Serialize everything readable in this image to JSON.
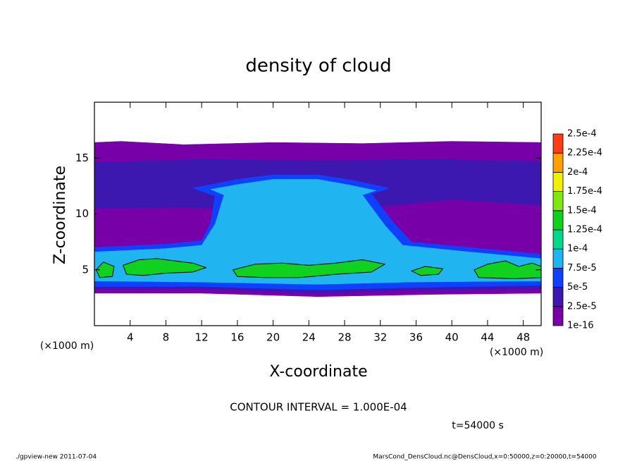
{
  "chart_data": {
    "type": "contour",
    "title": "density of cloud",
    "x_label": "X-coordinate",
    "y_label": "Z-coordinate",
    "x_unit": "(×1000 m)",
    "xlim": [
      0,
      50
    ],
    "ylim": [
      0,
      20
    ],
    "xticks": [
      4,
      8,
      12,
      16,
      20,
      24,
      28,
      32,
      36,
      40,
      44,
      48
    ],
    "yticks": [
      5,
      10,
      15
    ],
    "levels": [
      {
        "value": 1e-16,
        "label": "1e-16"
      },
      {
        "value": 2.5e-05,
        "label": "2.5e-5"
      },
      {
        "value": 5e-05,
        "label": "5e-5"
      },
      {
        "value": 7.5e-05,
        "label": "7.5e-5"
      },
      {
        "value": 0.0001,
        "label": "1e-4"
      },
      {
        "value": 0.000125,
        "label": "1.25e-4"
      },
      {
        "value": 0.00015,
        "label": "1.5e-4"
      },
      {
        "value": 0.000175,
        "label": "1.75e-4"
      },
      {
        "value": 0.0002,
        "label": "2e-4"
      },
      {
        "value": 0.000225,
        "label": "2.25e-4"
      },
      {
        "value": 0.00025,
        "label": "2.5e-4"
      }
    ],
    "level_colors": [
      "#7800a8",
      "#3c18b0",
      "#1040ff",
      "#20b4f0",
      "#00d88c",
      "#10d020",
      "#80e810",
      "#f0f000",
      "#ffa000",
      "#ff3c14",
      "#ff9c9c"
    ],
    "regions": [
      {
        "color": "#7800a8",
        "points": [
          [
            0,
            16.4
          ],
          [
            3,
            16.5
          ],
          [
            10,
            16.2
          ],
          [
            20,
            16.4
          ],
          [
            30,
            16.3
          ],
          [
            40,
            16.5
          ],
          [
            50,
            16.4
          ],
          [
            50,
            2.9
          ],
          [
            38,
            2.8
          ],
          [
            25,
            2.6
          ],
          [
            12,
            2.9
          ],
          [
            0,
            2.9
          ]
        ]
      },
      {
        "color": "#3c18b0",
        "points": [
          [
            0,
            14.6
          ],
          [
            12,
            14.9
          ],
          [
            25,
            14.8
          ],
          [
            38,
            14.9
          ],
          [
            50,
            14.7
          ],
          [
            50,
            10.8
          ],
          [
            40,
            11.3
          ],
          [
            30,
            10.5
          ],
          [
            20,
            10.3
          ],
          [
            10,
            10.6
          ],
          [
            0,
            10.5
          ]
        ]
      },
      {
        "color": "#3c18b0",
        "points": [
          [
            0,
            4.6
          ],
          [
            50,
            4.4
          ],
          [
            50,
            3.3
          ],
          [
            35,
            3.2
          ],
          [
            25,
            2.9
          ],
          [
            12,
            3.3
          ],
          [
            0,
            3.3
          ]
        ]
      },
      {
        "color": "#1040ff",
        "points": [
          [
            0,
            7.0
          ],
          [
            8,
            7.3
          ],
          [
            12,
            7.6
          ],
          [
            13,
            9.2
          ],
          [
            13.5,
            11.6
          ],
          [
            11,
            12.3
          ],
          [
            16,
            13.1
          ],
          [
            20,
            13.5
          ],
          [
            25,
            13.5
          ],
          [
            29,
            13.0
          ],
          [
            33,
            12.3
          ],
          [
            31,
            11.8
          ],
          [
            33.5,
            9.2
          ],
          [
            35.5,
            7.5
          ],
          [
            42,
            7.0
          ],
          [
            50,
            6.4
          ],
          [
            50,
            3.6
          ],
          [
            35,
            3.4
          ],
          [
            25,
            3.2
          ],
          [
            12,
            3.5
          ],
          [
            0,
            3.5
          ]
        ]
      },
      {
        "color": "#20b4f0",
        "points": [
          [
            0,
            6.6
          ],
          [
            8,
            6.9
          ],
          [
            12,
            7.2
          ],
          [
            13.5,
            9.1
          ],
          [
            14.5,
            11.7
          ],
          [
            13,
            12.2
          ],
          [
            16.5,
            12.7
          ],
          [
            20,
            13.1
          ],
          [
            25,
            13.1
          ],
          [
            28.5,
            12.6
          ],
          [
            31.5,
            12.1
          ],
          [
            30,
            11.7
          ],
          [
            32.5,
            9.0
          ],
          [
            34.5,
            7.2
          ],
          [
            42,
            6.6
          ],
          [
            50,
            6.0
          ],
          [
            50,
            4.0
          ],
          [
            35,
            3.9
          ],
          [
            25,
            3.7
          ],
          [
            12,
            3.9
          ],
          [
            0,
            4.0
          ]
        ]
      },
      {
        "color": "#10d020",
        "points": [
          [
            0.2,
            5.0
          ],
          [
            1,
            5.7
          ],
          [
            2.2,
            5.3
          ],
          [
            2,
            4.4
          ],
          [
            0.6,
            4.3
          ]
        ]
      },
      {
        "color": "#10d020",
        "points": [
          [
            3.2,
            5.4
          ],
          [
            5,
            5.9
          ],
          [
            7,
            6.0
          ],
          [
            9,
            5.8
          ],
          [
            11,
            5.6
          ],
          [
            12.5,
            5.2
          ],
          [
            11,
            4.8
          ],
          [
            8,
            4.7
          ],
          [
            5.5,
            4.5
          ],
          [
            3.6,
            4.6
          ]
        ]
      },
      {
        "color": "#10d020",
        "points": [
          [
            15.5,
            5.0
          ],
          [
            18,
            5.5
          ],
          [
            21,
            5.6
          ],
          [
            24,
            5.4
          ],
          [
            27,
            5.6
          ],
          [
            30,
            5.9
          ],
          [
            32.5,
            5.5
          ],
          [
            31,
            4.8
          ],
          [
            27,
            4.6
          ],
          [
            23,
            4.3
          ],
          [
            19,
            4.3
          ],
          [
            16,
            4.4
          ]
        ]
      },
      {
        "color": "#10d020",
        "points": [
          [
            35.5,
            4.9
          ],
          [
            37,
            5.3
          ],
          [
            39,
            5.1
          ],
          [
            38.5,
            4.6
          ],
          [
            36.5,
            4.5
          ]
        ]
      },
      {
        "color": "#10d020",
        "points": [
          [
            42.5,
            5.0
          ],
          [
            44,
            5.5
          ],
          [
            46,
            5.8
          ],
          [
            47.5,
            5.3
          ],
          [
            49,
            5.6
          ],
          [
            50,
            5.3
          ],
          [
            50,
            4.3
          ],
          [
            47,
            4.2
          ],
          [
            43,
            4.3
          ]
        ]
      }
    ],
    "contour_interval": "CONTOUR INTERVAL = 1.000E-04",
    "time_label": "t=54000 s",
    "footer_left": "./gpview-new  2011-07-04",
    "footer_right": "MarsCond_DensCloud.nc@DensCloud,x=0:50000,z=0:20000,t=54000"
  }
}
